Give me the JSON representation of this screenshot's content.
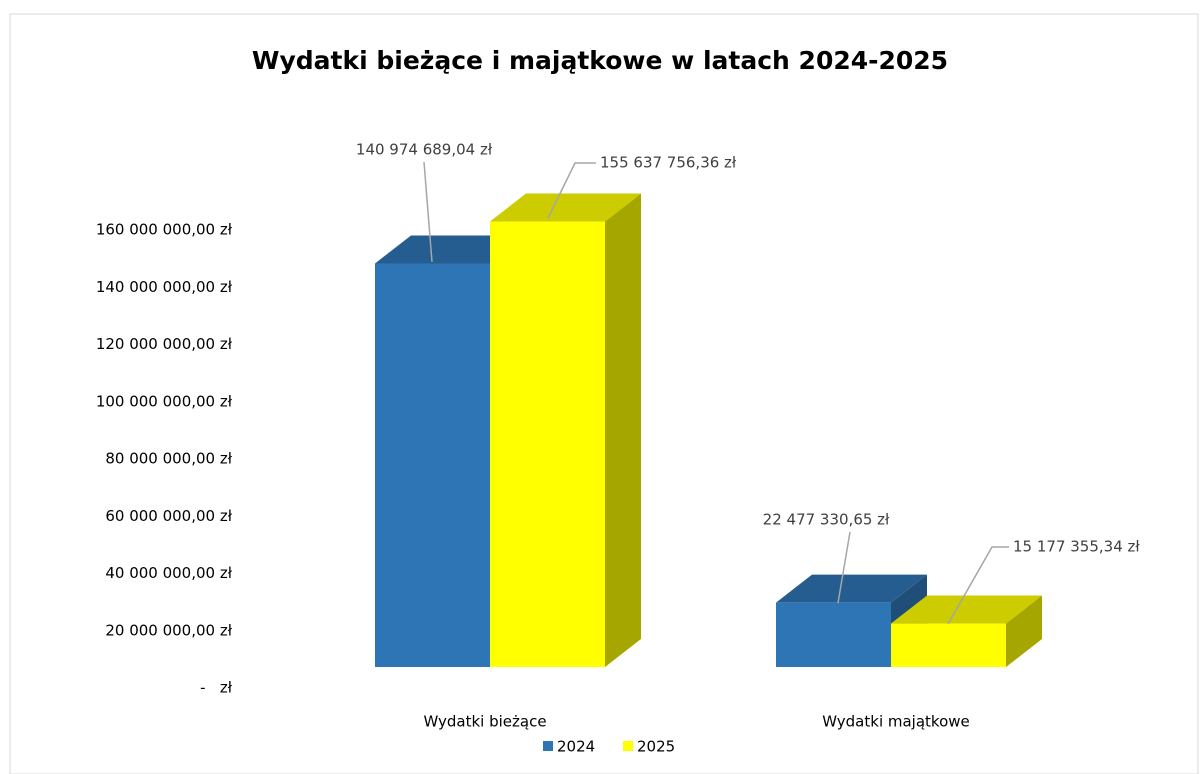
{
  "chart_data": {
    "type": "bar3d",
    "title": "Wydatki bieżące i majątkowe w latach 2024-2025",
    "categories": [
      "Wydatki bieżące",
      "Wydatki majątkowe"
    ],
    "series": [
      {
        "name": "2024",
        "color": "#2e75b6",
        "values": [
          140974689.04,
          22477330.65
        ],
        "value_labels": [
          "140 974 689,04 zł",
          "22 477 330,65 zł"
        ]
      },
      {
        "name": "2025",
        "color": "#ffff00",
        "values": [
          155637756.36,
          15177355.34
        ],
        "value_labels": [
          "155 637 756,36 zł",
          "15 177 355,34 zł"
        ]
      }
    ],
    "ylim": [
      0,
      160000000
    ],
    "yticks": [
      {
        "value": 0,
        "label": "-   zł"
      },
      {
        "value": 20000000,
        "label": "20 000 000,00 zł"
      },
      {
        "value": 40000000,
        "label": "40 000 000,00 zł"
      },
      {
        "value": 60000000,
        "label": "60 000 000,00 zł"
      },
      {
        "value": 80000000,
        "label": "80 000 000,00 zł"
      },
      {
        "value": 100000000,
        "label": "100 000 000,00 zł"
      },
      {
        "value": 120000000,
        "label": "120 000 000,00 zł"
      },
      {
        "value": 140000000,
        "label": "140 000 000,00 zł"
      },
      {
        "value": 160000000,
        "label": "160 000 000,00 zł"
      }
    ],
    "legend": "bottom"
  }
}
